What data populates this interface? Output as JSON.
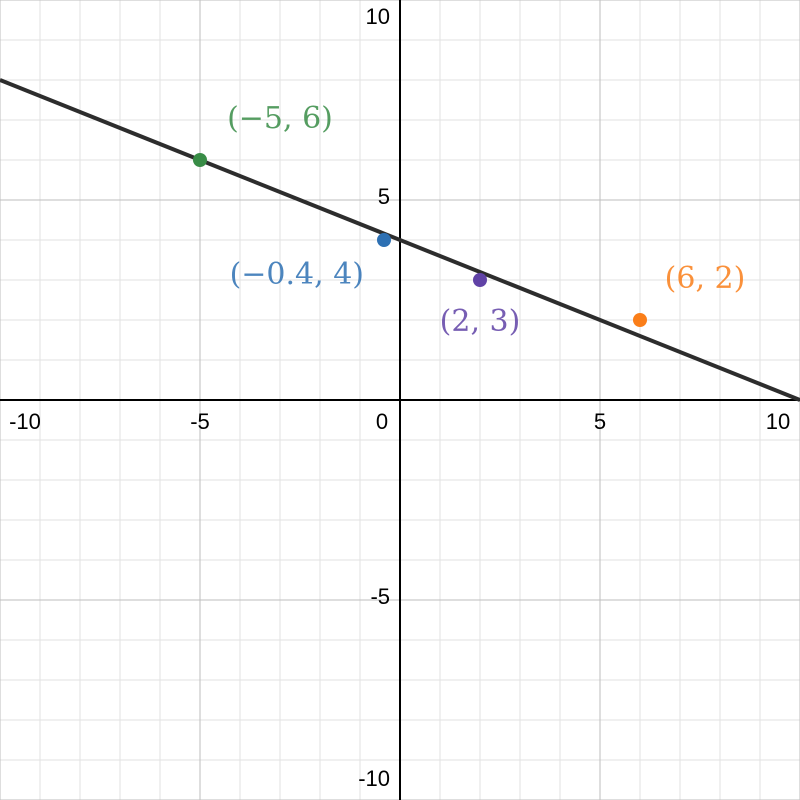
{
  "chart_data": {
    "type": "scatter",
    "x": [
      -5,
      -0.4,
      2,
      6
    ],
    "values": [
      6,
      4,
      3,
      2
    ],
    "value_labels": [
      "(−5, 6)",
      "(−0.4, 4)",
      "(2, 3)",
      "(6, 2)"
    ],
    "colors": [
      "#388c46",
      "#2d70b3",
      "#6042a6",
      "#fa7e19"
    ],
    "line": {
      "x": [
        -10,
        10
      ],
      "values": [
        8,
        0
      ],
      "color": "#2d2d2d"
    },
    "xlim": [
      -10,
      10
    ],
    "ylim": [
      -10,
      10
    ],
    "xticks": [
      -10,
      -5,
      0,
      5,
      10
    ],
    "yticks": [
      -10,
      -5,
      5,
      10
    ],
    "grid": true,
    "minor_grid_step": 1
  }
}
